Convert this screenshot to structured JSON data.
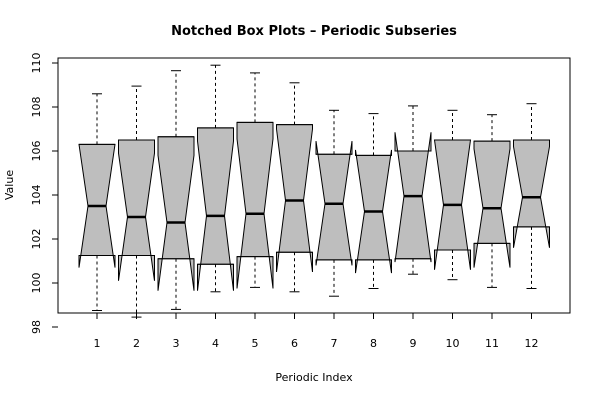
{
  "chart_data": {
    "type": "boxplot",
    "title": "Notched Box Plots – Periodic Subseries",
    "xlabel": "Periodic Index",
    "ylabel": "Value",
    "ylim": [
      98,
      110
    ],
    "yticks": [
      98,
      100,
      102,
      104,
      106,
      108,
      110
    ],
    "box_fill": "#bebebe",
    "categories": [
      "1",
      "2",
      "3",
      "4",
      "5",
      "6",
      "7",
      "8",
      "9",
      "10",
      "11",
      "12"
    ],
    "boxes": [
      {
        "min": 98.75,
        "q1": 101.25,
        "median": 103.5,
        "q3": 106.3,
        "max": 108.6,
        "notch_low": 100.7,
        "notch_high": 106.3
      },
      {
        "min": 98.45,
        "q1": 101.25,
        "median": 103.0,
        "q3": 106.5,
        "max": 108.95,
        "notch_low": 100.1,
        "notch_high": 105.9
      },
      {
        "min": 98.8,
        "q1": 101.1,
        "median": 102.75,
        "q3": 106.65,
        "max": 109.65,
        "notch_low": 99.65,
        "notch_high": 105.8
      },
      {
        "min": 99.6,
        "q1": 100.85,
        "median": 103.05,
        "q3": 107.05,
        "max": 109.9,
        "notch_low": 99.65,
        "notch_high": 106.45
      },
      {
        "min": 99.8,
        "q1": 101.2,
        "median": 103.15,
        "q3": 107.3,
        "max": 109.55,
        "notch_low": 99.75,
        "notch_high": 106.55
      },
      {
        "min": 99.6,
        "q1": 101.4,
        "median": 103.75,
        "q3": 107.2,
        "max": 109.1,
        "notch_low": 100.5,
        "notch_high": 107.0
      },
      {
        "min": 99.4,
        "q1": 101.05,
        "median": 103.6,
        "q3": 105.85,
        "max": 107.85,
        "notch_low": 100.8,
        "notch_high": 106.45
      },
      {
        "min": 99.75,
        "q1": 101.05,
        "median": 103.25,
        "q3": 105.8,
        "max": 107.7,
        "notch_low": 100.45,
        "notch_high": 106.05
      },
      {
        "min": 100.4,
        "q1": 101.1,
        "median": 103.95,
        "q3": 106.0,
        "max": 108.05,
        "notch_low": 100.95,
        "notch_high": 106.85
      },
      {
        "min": 100.15,
        "q1": 101.5,
        "median": 103.55,
        "q3": 106.5,
        "max": 107.85,
        "notch_low": 100.6,
        "notch_high": 106.5
      },
      {
        "min": 99.8,
        "q1": 101.8,
        "median": 103.4,
        "q3": 106.45,
        "max": 107.65,
        "notch_low": 100.7,
        "notch_high": 106.1
      },
      {
        "min": 99.75,
        "q1": 102.55,
        "median": 103.9,
        "q3": 106.5,
        "max": 108.15,
        "notch_low": 101.6,
        "notch_high": 106.2
      }
    ]
  }
}
